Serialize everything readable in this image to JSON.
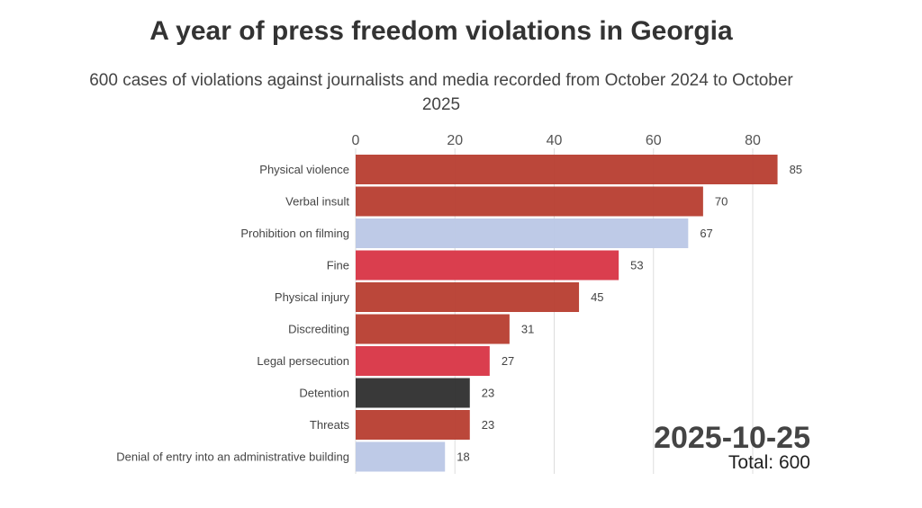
{
  "chart_data": {
    "type": "bar",
    "orientation": "horizontal",
    "title": "A year of press freedom violations in Georgia",
    "subtitle": "600 cases of violations against journalists and media recorded from October 2024 to October 2025",
    "categories": [
      "Physical violence",
      "Verbal insult",
      "Prohibition on filming",
      "Fine",
      "Physical injury",
      "Discrediting",
      "Legal persecution",
      "Detention",
      "Threats",
      "Denial of entry into an administrative building"
    ],
    "values": [
      85,
      70,
      67,
      53,
      45,
      31,
      27,
      23,
      23,
      18
    ],
    "colors": [
      "#b94134",
      "#b94134",
      "#bcc8e6",
      "#d93848",
      "#b94134",
      "#b94134",
      "#d93848",
      "#333333",
      "#b94134",
      "#bcc8e6"
    ],
    "xticks": [
      0,
      20,
      40,
      60,
      80
    ],
    "xlim": [
      0,
      90
    ],
    "xaxis_position": "top",
    "grid": true,
    "date_label": "2025-10-25",
    "total_label": "Total: 600"
  }
}
